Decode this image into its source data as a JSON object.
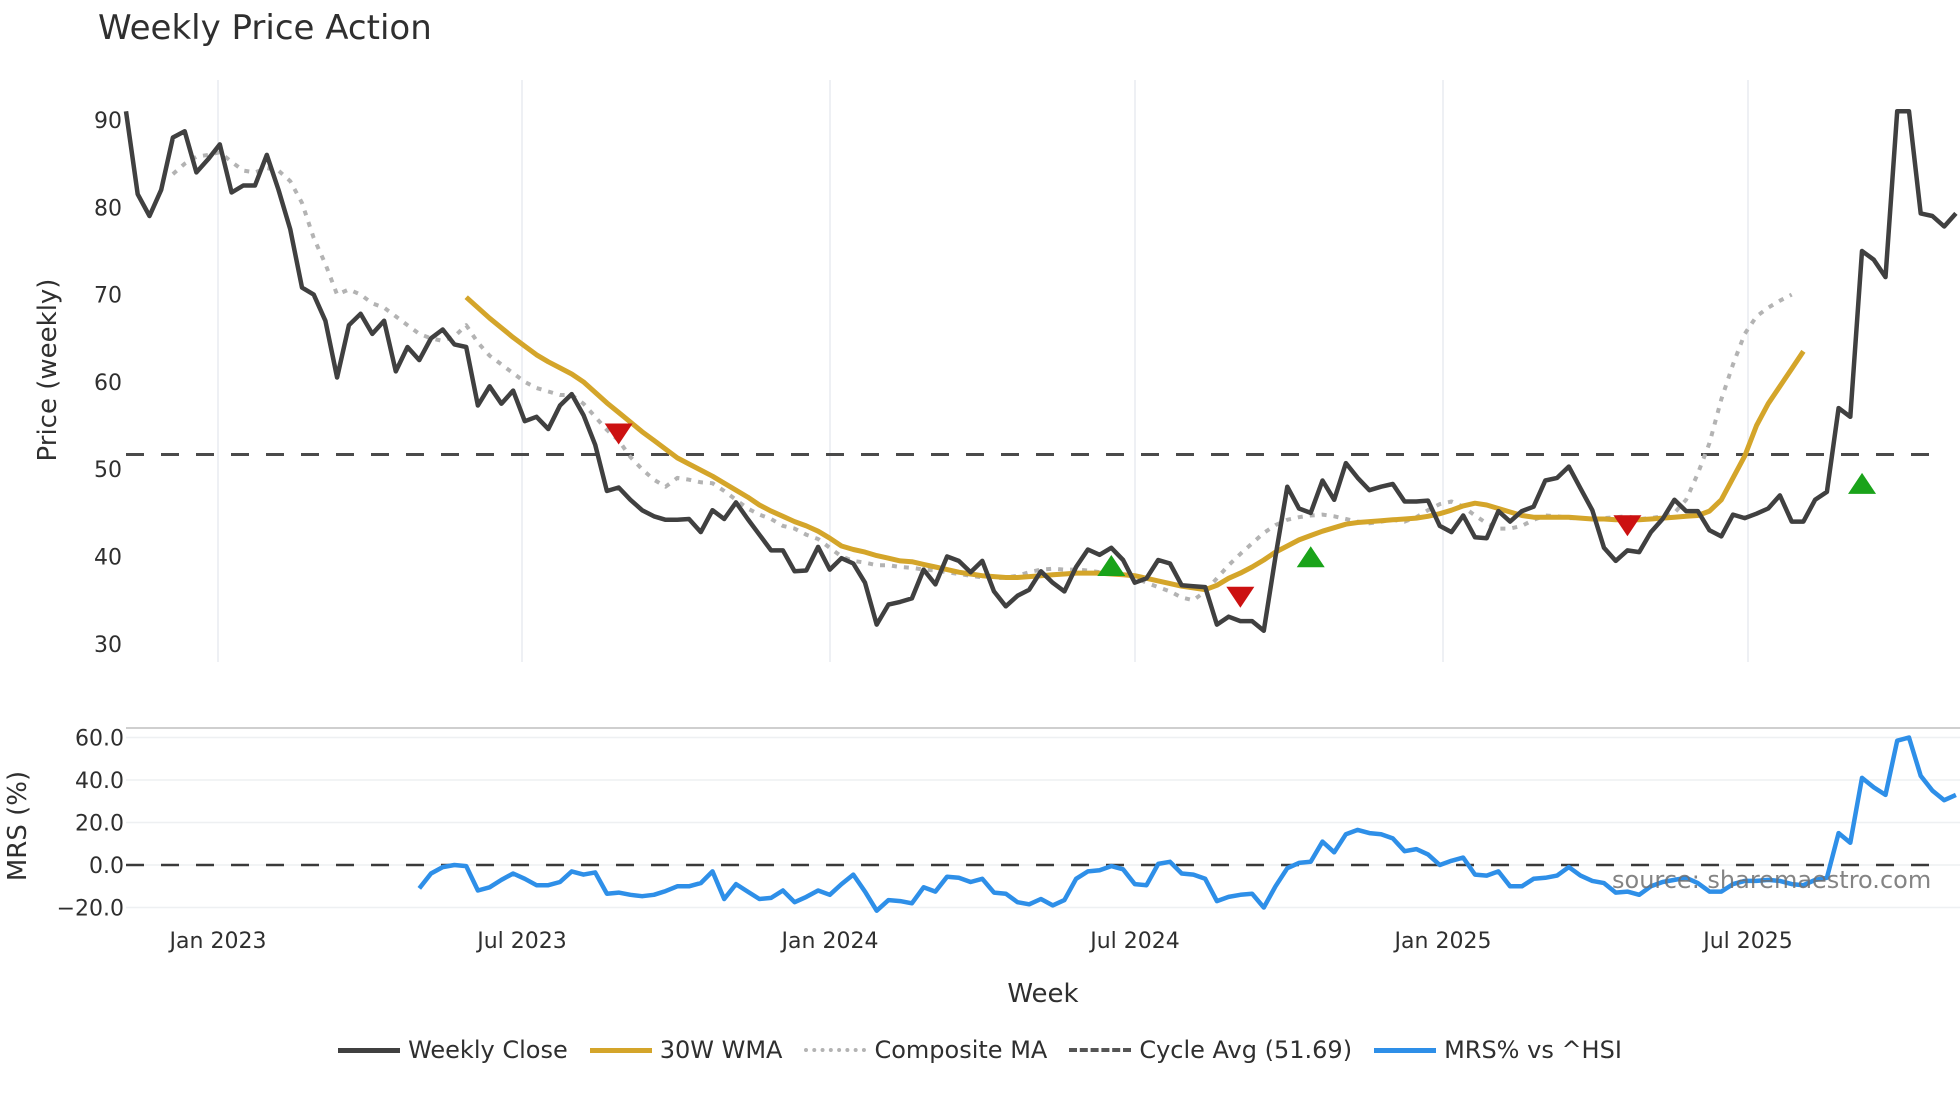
{
  "title": "Weekly Price Action",
  "source": "source: sharemaestro.com",
  "legend": [
    {
      "label": "Weekly Close",
      "color": "#404040",
      "style": "solid"
    },
    {
      "label": "30W WMA",
      "color": "#D4A52A",
      "style": "solid"
    },
    {
      "label": "Composite MA",
      "color": "#B3B3B3",
      "style": "dotted"
    },
    {
      "label": "Cycle Avg (51.69)",
      "color": "#555555",
      "style": "dashed"
    },
    {
      "label": "MRS% vs ^HSI",
      "color": "#2E8FE8",
      "style": "solid"
    }
  ],
  "chart_data": [
    {
      "type": "line",
      "title": "Weekly Price Action",
      "xlabel": "",
      "ylabel": "Price (weekly)",
      "ylim": [
        28,
        93
      ],
      "yticks": [
        30,
        40,
        50,
        60,
        70,
        80,
        90
      ],
      "xticks": [
        "Jan 2023",
        "Jul 2023",
        "Jan 2024",
        "Jul 2024",
        "Jan 2025",
        "Jul 2025"
      ],
      "grid": "vertical",
      "cycle_avg": 51.69,
      "series": [
        {
          "name": "Weekly Close",
          "start_index": 0,
          "values": [
            91,
            81.5,
            79,
            82,
            88,
            88.7,
            84,
            85.5,
            87.2,
            81.7,
            82.5,
            82.5,
            86,
            82,
            77.5,
            70.8,
            70,
            67,
            60.5,
            66.5,
            67.8,
            65.5,
            67,
            61.2,
            64,
            62.5,
            65,
            66,
            64.3,
            64,
            57.3,
            59.5,
            57.5,
            59,
            55.5,
            56,
            54.6,
            57.3,
            58.6,
            56.2,
            52.8,
            47.5,
            47.9,
            46.5,
            45.3,
            44.6,
            44.2,
            44.2,
            44.3,
            42.8,
            45.3,
            44.3,
            46.2,
            44.3,
            42.5,
            40.7,
            40.7,
            38.3,
            38.4,
            41.1,
            38.5,
            39.8,
            39.2,
            37,
            32.2,
            34.5,
            34.8,
            35.2,
            38.5,
            36.8,
            40,
            39.5,
            38.2,
            39.5,
            36,
            34.3,
            35.5,
            36.2,
            38.3,
            37,
            36,
            38.8,
            40.8,
            40.2,
            41,
            39.6,
            37,
            37.5,
            39.6,
            39.2,
            36.7,
            36.6,
            36.5,
            32.2,
            33.1,
            32.6,
            32.6,
            31.5,
            40,
            48,
            45.5,
            45,
            48.7,
            46.5,
            50.7,
            49,
            47.6,
            48,
            48.3,
            46.3,
            46.3,
            46.4,
            43.5,
            42.8,
            44.7,
            42.2,
            42.1,
            45.2,
            44,
            45.2,
            45.7,
            48.7,
            49,
            50.3,
            47.8,
            45.3,
            41,
            39.5,
            40.7,
            40.5,
            42.8,
            44.3,
            46.5,
            45.2,
            45.2,
            43,
            42.3,
            44.8,
            44.4,
            44.9,
            45.5,
            47,
            44,
            44,
            46.5,
            47.4,
            57,
            56,
            75,
            74,
            72,
            91,
            91,
            79.3,
            79,
            77.8,
            79.3
          ]
        },
        {
          "name": "30W WMA",
          "start_index": 29,
          "values": [
            69.7,
            68.5,
            67.3,
            66.2,
            65.1,
            64.1,
            63.1,
            62.3,
            61.6,
            60.9,
            60,
            58.8,
            57.6,
            56.5,
            55.4,
            54.3,
            53.3,
            52.3,
            51.3,
            50.6,
            49.9,
            49.2,
            48.4,
            47.6,
            46.8,
            45.9,
            45.2,
            44.6,
            44,
            43.5,
            42.9,
            42.1,
            41.2,
            40.8,
            40.5,
            40.1,
            39.8,
            39.5,
            39.4,
            39.1,
            38.8,
            38.5,
            38.2,
            38,
            37.8,
            37.7,
            37.6,
            37.6,
            37.7,
            37.8,
            37.9,
            38,
            38.1,
            38.1,
            38.1,
            38,
            37.9,
            37.8,
            37.5,
            37.2,
            36.9,
            36.6,
            36.4,
            36.2,
            36.7,
            37.5,
            38.1,
            38.8,
            39.6,
            40.5,
            41.2,
            41.9,
            42.4,
            42.9,
            43.3,
            43.7,
            43.9,
            44,
            44.1,
            44.2,
            44.3,
            44.4,
            44.6,
            44.9,
            45.3,
            45.8,
            46.1,
            45.9,
            45.5,
            45.1,
            44.7,
            44.5,
            44.5,
            44.5,
            44.5,
            44.4,
            44.3,
            44.3,
            44.2,
            44.2,
            44.2,
            44.3,
            44.4,
            44.5,
            44.6,
            44.7,
            45.2,
            46.5,
            49,
            51.5,
            55,
            57.5,
            59.5,
            61.5,
            63.5
          ]
        },
        {
          "name": "Composite MA",
          "start_index": 4,
          "values": [
            83.8,
            85,
            85.8,
            86,
            86.3,
            85.2,
            84.2,
            84,
            84.5,
            84.2,
            83,
            80.5,
            76.5,
            73.5,
            70,
            70.6,
            70,
            69,
            68.5,
            67.5,
            66.5,
            65.5,
            65,
            64.7,
            65.2,
            66.5,
            64.5,
            63,
            62,
            61,
            60,
            59.3,
            58.9,
            58.5,
            58.5,
            57.5,
            56,
            54.5,
            53.3,
            51.4,
            50,
            48.8,
            48,
            49,
            48.8,
            48.5,
            48.4,
            47.5,
            46.5,
            45.5,
            44.8,
            44.3,
            43.5,
            43.2,
            42.5,
            42,
            41,
            40,
            39.5,
            39.3,
            39,
            39,
            38.8,
            38.7,
            38.5,
            38.4,
            38.2,
            38,
            37.8,
            37.6,
            37.5,
            37.6,
            37.8,
            38.2,
            38.5,
            38.6,
            38.5,
            38.5,
            38.4,
            38.2,
            38.2,
            38,
            37.6,
            37,
            36.5,
            36,
            35.3,
            35,
            36,
            37.5,
            39,
            40.3,
            41.5,
            42.7,
            43.6,
            44.2,
            44.5,
            44.7,
            44.8,
            44.6,
            44.3,
            44,
            43.8,
            44,
            44.2,
            44,
            44.5,
            45.3,
            46,
            46.3,
            45.7,
            44.7,
            43.8,
            43.2,
            43.2,
            43.5,
            44.2,
            44.7,
            44.6,
            44.4,
            44.4,
            44.3,
            44.4,
            44.5,
            44.6,
            44.3,
            44.4,
            44.6,
            45,
            46.5,
            49.5,
            53,
            58,
            62,
            65.5,
            67.5,
            68.5,
            69.3,
            70
          ]
        },
        {
          "name": "Cycle Avg (51.69)",
          "values": [
            51.69
          ]
        }
      ],
      "markers": [
        {
          "type": "sell",
          "index": 42,
          "value": 54.2,
          "color": "#CC1111"
        },
        {
          "type": "buy",
          "index": 84,
          "value": 38.8,
          "color": "#1AA31A"
        },
        {
          "type": "sell",
          "index": 95,
          "value": 35.5,
          "color": "#CC1111"
        },
        {
          "type": "buy",
          "index": 101,
          "value": 39.8,
          "color": "#1AA31A"
        },
        {
          "type": "sell",
          "index": 128,
          "value": 43.7,
          "color": "#CC1111"
        },
        {
          "type": "buy",
          "index": 148,
          "value": 48.2,
          "color": "#1AA31A"
        }
      ]
    },
    {
      "type": "line",
      "title": "",
      "xlabel": "Week",
      "ylabel": "MRS (%)",
      "ylim": [
        -25,
        63
      ],
      "yticks": [
        "-20.0",
        "0.0",
        "20.0",
        "40.0",
        "60.0"
      ],
      "xticks": [
        "Jan 2023",
        "Jul 2023",
        "Jan 2024",
        "Jul 2024",
        "Jan 2025",
        "Jul 2025"
      ],
      "grid": "horizontal",
      "zero_line": 0,
      "series": [
        {
          "name": "MRS% vs ^HSI",
          "start_index": 25,
          "values": [
            -11,
            -4,
            -1,
            0,
            -0.5,
            -12,
            -10.5,
            -7,
            -4,
            -6.5,
            -9.5,
            -9.5,
            -8,
            -3,
            -4.5,
            -3.5,
            -13.5,
            -13,
            -14,
            -14.7,
            -14,
            -12.3,
            -10,
            -10,
            -8.5,
            -3,
            -16,
            -9,
            -12.5,
            -16,
            -15.5,
            -12,
            -17.5,
            -15,
            -12,
            -14,
            -9,
            -4.5,
            -12.5,
            -21.5,
            -16.5,
            -17,
            -18,
            -10.5,
            -12.5,
            -5.5,
            -6,
            -8,
            -6.5,
            -13,
            -13.5,
            -17.5,
            -18.5,
            -16,
            -19,
            -16.5,
            -6.5,
            -3,
            -2.5,
            -0.5,
            -2,
            -9,
            -9.5,
            0.5,
            1.5,
            -4,
            -4.5,
            -6.5,
            -17,
            -15,
            -14,
            -13.5,
            -20,
            -10,
            -1.5,
            1,
            1.5,
            11,
            6,
            14.5,
            16.5,
            15,
            14.5,
            12.5,
            6.5,
            7.5,
            5,
            0,
            2,
            3.5,
            -4.5,
            -5,
            -3,
            -10,
            -10,
            -6.5,
            -6,
            -5,
            -1,
            -5,
            -7.5,
            -8.5,
            -13,
            -12.5,
            -14,
            -10,
            -8,
            -7,
            -6,
            -8.5,
            -12.5,
            -12.5,
            -9,
            -7.5,
            -7.5,
            -7,
            -7.5,
            -9,
            -9.5,
            -7,
            -6,
            15,
            10.5,
            41,
            36.5,
            33,
            58.5,
            60,
            42,
            35,
            30.5,
            33
          ]
        }
      ]
    }
  ],
  "axes": {
    "price_ylabel": "Price (weekly)",
    "mrs_ylabel": "MRS (%)",
    "xlabel": "Week"
  }
}
